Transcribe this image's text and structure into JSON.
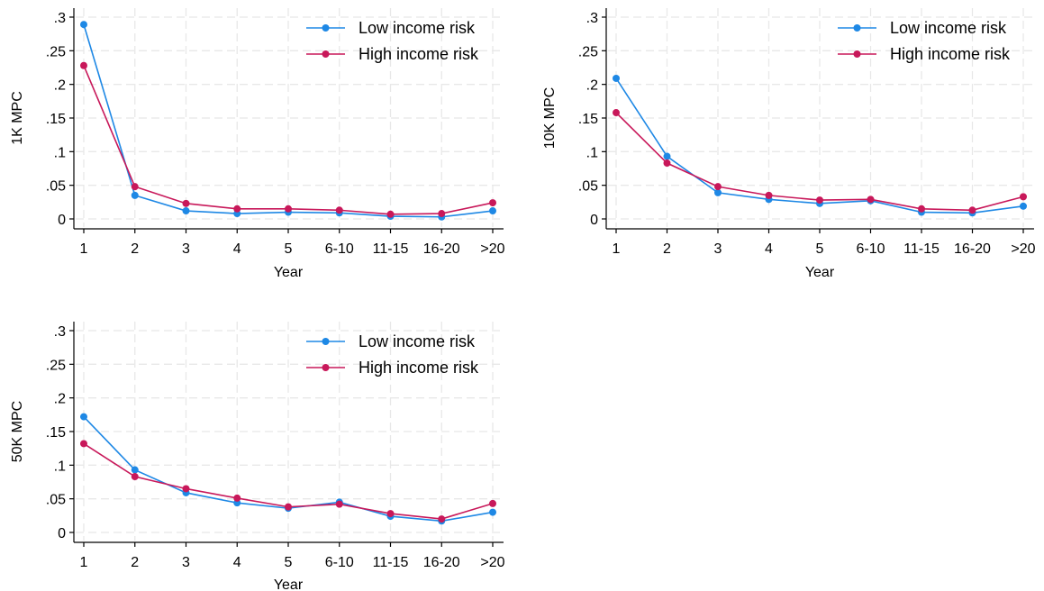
{
  "chart_data": [
    {
      "type": "line",
      "ylabel": "1K MPC",
      "xlabel": "Year",
      "categories": [
        "1",
        "2",
        "3",
        "4",
        "5",
        "6-10",
        "11-15",
        "16-20",
        ">20"
      ],
      "yticks": [
        ".3",
        ".25",
        ".2",
        ".15",
        ".1",
        ".05",
        "0"
      ],
      "ylim": [
        0,
        0.3
      ],
      "grid": true,
      "legend_position": "top-right",
      "series": [
        {
          "name": "Low income risk",
          "color": "#1e88e5",
          "values": [
            0.289,
            0.035,
            0.012,
            0.008,
            0.01,
            0.009,
            0.004,
            0.003,
            0.012
          ]
        },
        {
          "name": "High income risk",
          "color": "#c8185a",
          "values": [
            0.228,
            0.048,
            0.023,
            0.015,
            0.015,
            0.013,
            0.007,
            0.008,
            0.024
          ]
        }
      ]
    },
    {
      "type": "line",
      "ylabel": "10K MPC",
      "xlabel": "Year",
      "categories": [
        "1",
        "2",
        "3",
        "4",
        "5",
        "6-10",
        "11-15",
        "16-20",
        ">20"
      ],
      "yticks": [
        ".3",
        ".25",
        ".2",
        ".15",
        ".1",
        ".05",
        "0"
      ],
      "ylim": [
        0,
        0.3
      ],
      "grid": true,
      "legend_position": "top-right",
      "series": [
        {
          "name": "Low income risk",
          "color": "#1e88e5",
          "values": [
            0.209,
            0.093,
            0.039,
            0.029,
            0.023,
            0.027,
            0.01,
            0.009,
            0.019
          ]
        },
        {
          "name": "High income risk",
          "color": "#c8185a",
          "values": [
            0.158,
            0.083,
            0.048,
            0.035,
            0.028,
            0.029,
            0.015,
            0.013,
            0.033
          ]
        }
      ]
    },
    {
      "type": "line",
      "ylabel": "50K MPC",
      "xlabel": "Year",
      "categories": [
        "1",
        "2",
        "3",
        "4",
        "5",
        "6-10",
        "11-15",
        "16-20",
        ">20"
      ],
      "yticks": [
        ".3",
        ".25",
        ".2",
        ".15",
        ".1",
        ".05",
        "0"
      ],
      "ylim": [
        0,
        0.3
      ],
      "grid": true,
      "legend_position": "top-right",
      "series": [
        {
          "name": "Low income risk",
          "color": "#1e88e5",
          "values": [
            0.172,
            0.093,
            0.059,
            0.044,
            0.036,
            0.045,
            0.024,
            0.017,
            0.03
          ]
        },
        {
          "name": "High income risk",
          "color": "#c8185a",
          "values": [
            0.132,
            0.083,
            0.065,
            0.051,
            0.038,
            0.042,
            0.028,
            0.02,
            0.043
          ]
        }
      ]
    }
  ]
}
